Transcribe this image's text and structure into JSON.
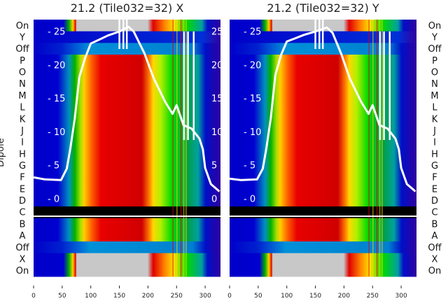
{
  "chart_data": [
    {
      "type": "heatmap",
      "title": "21.2 (Tile032=32) X",
      "ylabel": "Dipole",
      "row_labels": [
        "On",
        "Y",
        "Off",
        "P",
        "O",
        "N",
        "M",
        "L",
        "K",
        "J",
        "I",
        "H",
        "G",
        "F",
        "E",
        "D",
        "C",
        "B",
        "A",
        "Off",
        "X",
        "On"
      ],
      "x_ticks": [
        0,
        50,
        100,
        150,
        200,
        250,
        300
      ],
      "y_ticks": [
        0,
        5,
        10,
        15,
        20,
        25
      ],
      "xlim": [
        0,
        327
      ],
      "overlay_line": {
        "x": [
          0,
          20,
          48,
          58,
          64,
          72,
          80,
          90,
          100,
          115,
          130,
          150,
          166,
          175,
          194,
          210,
          230,
          243,
          250,
          262,
          276,
          290,
          296,
          300,
          310,
          325
        ],
        "y": [
          3.2,
          2.9,
          2.8,
          4.5,
          7.4,
          12,
          18.2,
          21,
          23.2,
          23.8,
          24.4,
          25,
          25.7,
          25,
          21.7,
          18,
          14.5,
          12.7,
          14,
          11,
          10.5,
          9,
          7.4,
          4.6,
          2.2,
          1.1
        ]
      }
    },
    {
      "type": "heatmap",
      "title": "21.2 (Tile032=32) Y",
      "row_labels": [
        "On",
        "Y",
        "Off",
        "P",
        "O",
        "N",
        "M",
        "L",
        "K",
        "J",
        "I",
        "H",
        "G",
        "F",
        "E",
        "D",
        "C",
        "B",
        "A",
        "Off",
        "X",
        "On"
      ],
      "x_ticks": [
        0,
        50,
        100,
        150,
        200,
        250,
        300
      ],
      "y_ticks": [
        0,
        5,
        10,
        15,
        20,
        25
      ],
      "xlim": [
        0,
        327
      ],
      "overlay_line": {
        "x": [
          0,
          20,
          48,
          58,
          64,
          72,
          80,
          90,
          100,
          115,
          130,
          150,
          170,
          180,
          196,
          210,
          230,
          243,
          250,
          262,
          276,
          290,
          296,
          300,
          310,
          325
        ],
        "y": [
          3.0,
          2.8,
          2.9,
          4.5,
          7.4,
          12,
          18.5,
          21.5,
          23.5,
          24,
          24.5,
          25,
          25.6,
          24.8,
          21.5,
          18,
          14.5,
          12.7,
          14,
          11,
          10.5,
          9,
          7.4,
          4.6,
          2.2,
          1.1
        ]
      }
    }
  ]
}
